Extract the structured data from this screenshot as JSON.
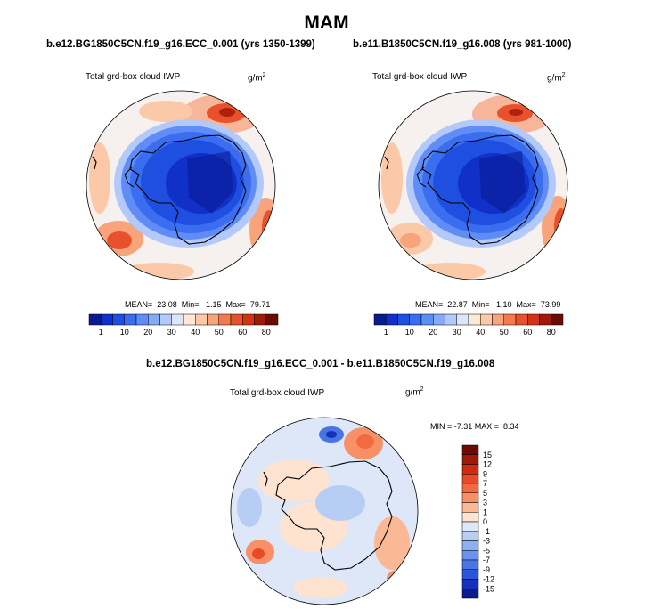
{
  "figure": {
    "season": "MAM",
    "panels": [
      {
        "case_title": "b.e12.BG1850C5CN.f19_g16.ECC_0.001 (yrs 1350-1399)",
        "variable": "Total grd-box cloud IWP",
        "units_base": "g/m",
        "units_exp": "2",
        "stats_text": "MEAN=  23.08  Min=   1.15  Max=  79.71",
        "mean": 23.08,
        "min": 1.15,
        "max": 79.71
      },
      {
        "case_title": "b.e11.B1850C5CN.f19_g16.008 (yrs 981-1000)",
        "variable": "Total grd-box cloud IWP",
        "units_base": "g/m",
        "units_exp": "2",
        "stats_text": "MEAN=  22.87  Min=   1.10  Max=  73.99",
        "mean": 22.87,
        "min": 1.1,
        "max": 73.99
      }
    ],
    "difference": {
      "title": "b.e12.BG1850C5CN.f19_g16.ECC_0.001 - b.e11.B1850C5CN.f19_g16.008",
      "variable": "Total grd-box cloud IWP",
      "units_base": "g/m",
      "units_exp": "2",
      "stats_text": "MIN = -7.31 MAX =  8.34",
      "min": -7.31,
      "max": 8.34
    }
  },
  "colorbars": {
    "absolute": {
      "labels": [
        "1",
        "10",
        "20",
        "30",
        "40",
        "50",
        "60",
        "80"
      ],
      "colors": [
        "#0a1a8f",
        "#1030c8",
        "#1f4fe0",
        "#3a6df0",
        "#5f8cf5",
        "#86aaf8",
        "#b3c9f9",
        "#dce6f8",
        "#fde8d9",
        "#fbc9a8",
        "#f7a47a",
        "#f27a4c",
        "#e8512b",
        "#d23215",
        "#9e1a0a",
        "#6b0c04"
      ]
    },
    "difference": {
      "labels": [
        "15",
        "12",
        "9",
        "7",
        "5",
        "3",
        "1",
        "0",
        "-1",
        "-3",
        "-5",
        "-7",
        "-9",
        "-12",
        "-15"
      ],
      "colors": [
        "#6b0c04",
        "#a01808",
        "#d02a10",
        "#e84a25",
        "#f26a40",
        "#f79066",
        "#fbb894",
        "#fde3d0",
        "#dde7f7",
        "#b7cdf4",
        "#8eb0f2",
        "#6a92ee",
        "#4874e6",
        "#2a55d8",
        "#1533b8",
        "#0a1a8f"
      ]
    }
  }
}
